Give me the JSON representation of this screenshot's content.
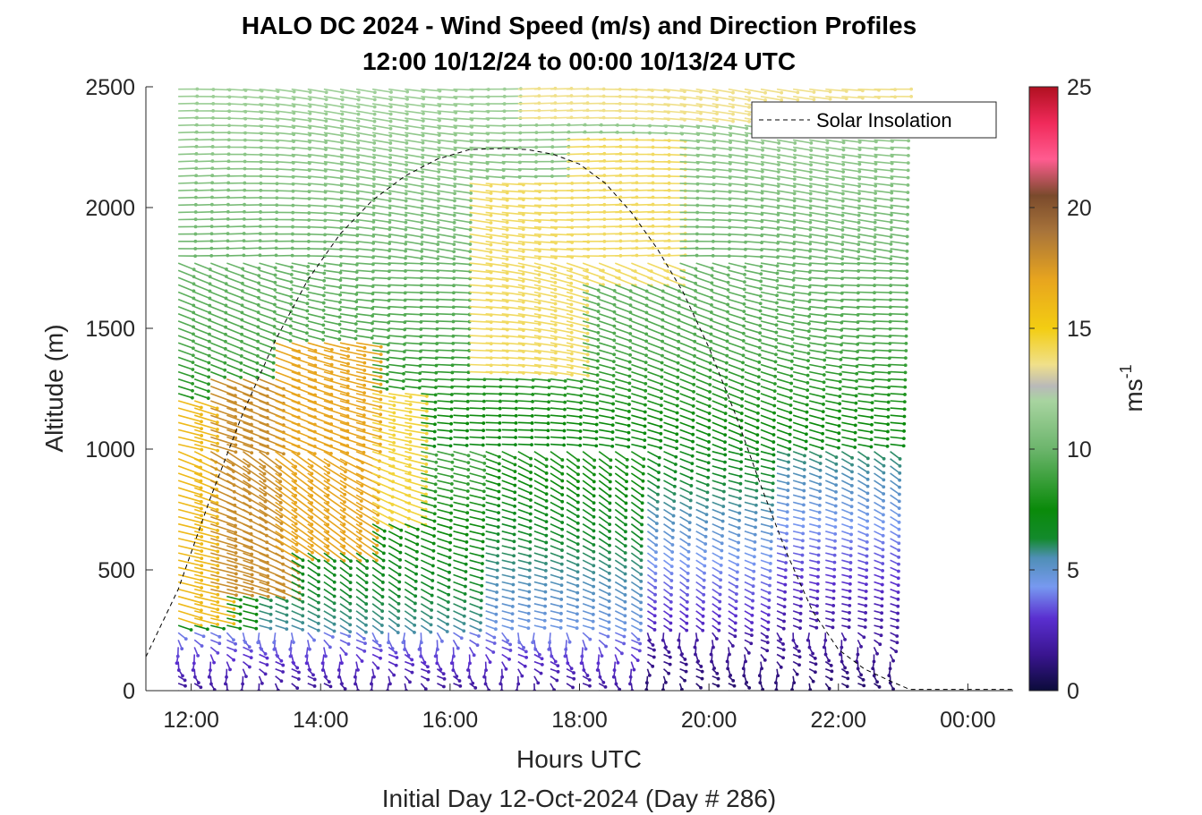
{
  "chart_data": {
    "type": "vector-field",
    "title_line1": "HALO DC 2024 - Wind Speed (m/s) and Direction Profiles",
    "title_line2": "12:00 10/12/24 to 00:00 10/13/24  UTC",
    "xlabel": "Hours UTC",
    "xlabel2": "Initial Day 12-Oct-2024 (Day # 286)",
    "ylabel": "Altitude (m)",
    "xlim": [
      11.3,
      24.7
    ],
    "ylim": [
      0,
      2500
    ],
    "x_ticks": [
      12,
      14,
      16,
      18,
      20,
      22,
      24
    ],
    "x_tick_labels": [
      "12:00",
      "14:00",
      "16:00",
      "18:00",
      "20:00",
      "22:00",
      "00:00"
    ],
    "y_ticks": [
      0,
      500,
      1000,
      1500,
      2000,
      2500
    ],
    "y_tick_labels": [
      "0",
      "500",
      "1000",
      "1500",
      "2000",
      "2500"
    ],
    "colorbar": {
      "label": "ms",
      "label_sup": "-1",
      "range": [
        0,
        25
      ],
      "ticks": [
        0,
        5,
        10,
        15,
        20,
        25
      ],
      "tick_labels": [
        "0",
        "5",
        "10",
        "15",
        "20",
        "25"
      ],
      "stops": [
        {
          "v": 0,
          "c": "#0b0b3a"
        },
        {
          "v": 1.5,
          "c": "#3a1590"
        },
        {
          "v": 3,
          "c": "#5a2fd0"
        },
        {
          "v": 4.3,
          "c": "#7799f0"
        },
        {
          "v": 5.5,
          "c": "#4f8fb6"
        },
        {
          "v": 6.3,
          "c": "#138a2c"
        },
        {
          "v": 7.5,
          "c": "#0a8a0a"
        },
        {
          "v": 10,
          "c": "#6cb56c"
        },
        {
          "v": 12,
          "c": "#a8d4a0"
        },
        {
          "v": 12.6,
          "c": "#b9b9b9"
        },
        {
          "v": 13.5,
          "c": "#f0e08a"
        },
        {
          "v": 15,
          "c": "#f3cd12"
        },
        {
          "v": 17,
          "c": "#e8a51e"
        },
        {
          "v": 19,
          "c": "#a8743a"
        },
        {
          "v": 20.5,
          "c": "#7a4a2c"
        },
        {
          "v": 22,
          "c": "#ff5c90"
        },
        {
          "v": 23.5,
          "c": "#f02a5a"
        },
        {
          "v": 25,
          "c": "#b01020"
        }
      ]
    },
    "legend": [
      {
        "name": "Solar Insolation",
        "style": "dashed",
        "color": "#000000",
        "position": "top-right"
      }
    ],
    "solar_insolation": {
      "x": [
        11.3,
        11.8,
        12.3,
        12.8,
        13.3,
        13.8,
        14.3,
        14.8,
        15.3,
        15.8,
        16.3,
        16.8,
        17.2,
        17.6,
        18.0,
        18.4,
        18.8,
        19.2,
        19.6,
        20.0,
        20.4,
        20.8,
        21.2,
        21.6,
        22.0,
        22.4,
        22.8,
        23.1,
        24.7
      ],
      "y": [
        140,
        420,
        800,
        1150,
        1450,
        1700,
        1890,
        2030,
        2130,
        2200,
        2240,
        2245,
        2240,
        2220,
        2180,
        2100,
        1980,
        1830,
        1650,
        1420,
        1150,
        850,
        570,
        330,
        170,
        90,
        40,
        5,
        5
      ]
    },
    "wind_field": {
      "time_start": 11.8,
      "time_end": 22.8,
      "time_step": 0.25,
      "altitude_start": 0,
      "altitude_end": 2500,
      "altitude_step": 30,
      "speed_units": "m/s",
      "speed_regions": [
        {
          "t": [
            11.8,
            12.3
          ],
          "z": [
            300,
            1200
          ],
          "speed": 16
        },
        {
          "t": [
            12.3,
            13.3
          ],
          "z": [
            400,
            1300
          ],
          "speed": 18
        },
        {
          "t": [
            13.3,
            14.6
          ],
          "z": [
            600,
            1450
          ],
          "speed": 17
        },
        {
          "t": [
            14.6,
            15.3
          ],
          "z": [
            700,
            1250
          ],
          "speed": 14.5
        },
        {
          "t": [
            16.3,
            18.0
          ],
          "z": [
            1300,
            2100
          ],
          "speed": 14
        },
        {
          "t": [
            17.8,
            19.5
          ],
          "z": [
            1700,
            2300
          ],
          "speed": 14
        },
        {
          "t": [
            17.0,
            22.8
          ],
          "z": [
            2350,
            2500
          ],
          "speed": 13.5
        }
      ],
      "directions": "wind from northwest at low levels backing to west aloft"
    }
  }
}
